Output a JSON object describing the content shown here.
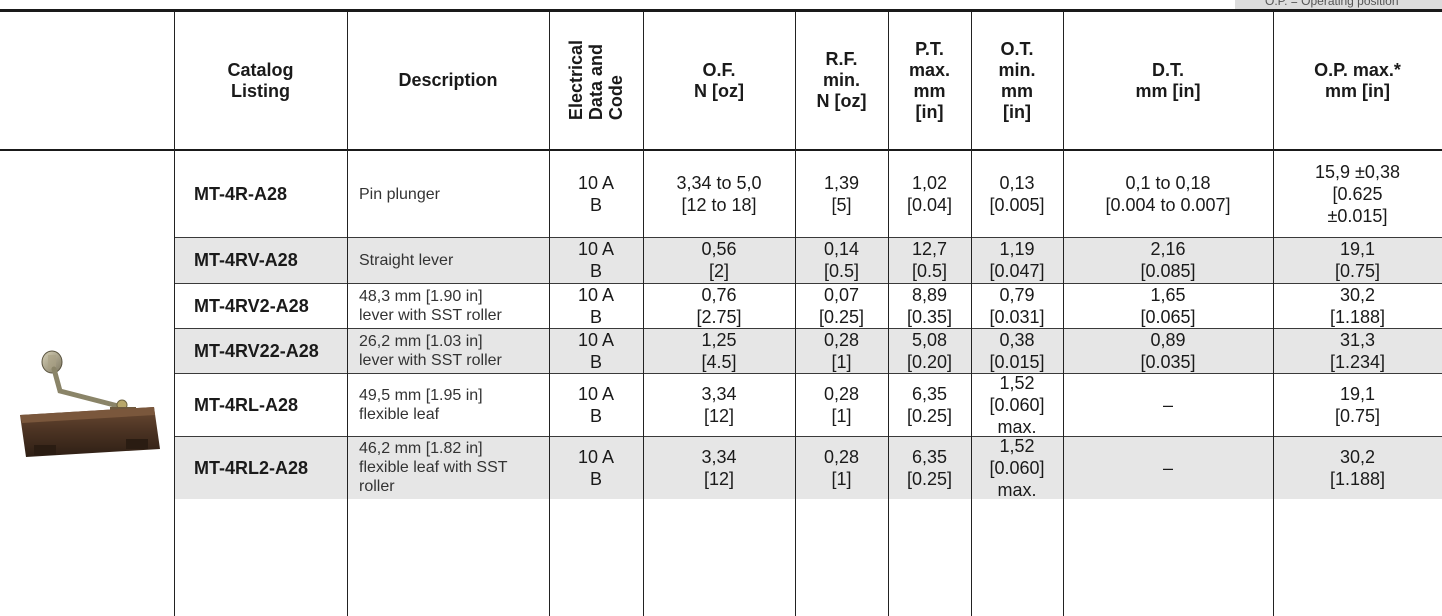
{
  "note": "O.P. = Operating position",
  "columns": [
    "Catalog\nListing",
    "Description",
    "Electrical\nData and\nCode",
    "O.F.\nN [oz]",
    "R.F.\nmin.\nN [oz]",
    "P.T.\nmax.\nmm\n[in]",
    "O.T.\nmin.\nmm\n[in]",
    "D.T.\nmm [in]",
    "O.P. max.*\nmm [in]"
  ],
  "rows": [
    {
      "catalog": "MT-4R-A28",
      "description": "Pin plunger",
      "electrical": "10 A\nB",
      "of": "3,34 to 5,0\n[12 to 18]",
      "rf": "1,39\n[5]",
      "pt": "1,02\n[0.04]",
      "ot": "0,13\n[0.005]",
      "dt": "0,1 to 0,18\n[0.004 to 0.007]",
      "op": "15,9 ±0,38\n[0.625\n±0.015]"
    },
    {
      "catalog": "MT-4RV-A28",
      "description": "Straight lever",
      "electrical": "10 A\nB",
      "of": "0,56\n[2]",
      "rf": "0,14\n[0.5]",
      "pt": "12,7\n[0.5]",
      "ot": "1,19\n[0.047]",
      "dt": "2,16\n[0.085]",
      "op": "19,1\n[0.75]"
    },
    {
      "catalog": "MT-4RV2-A28",
      "description": "48,3 mm [1.90 in]\nlever with SST roller",
      "electrical": "10 A\nB",
      "of": "0,76\n[2.75]",
      "rf": "0,07\n[0.25]",
      "pt": "8,89\n[0.35]",
      "ot": "0,79\n[0.031]",
      "dt": "1,65\n[0.065]",
      "op": "30,2\n[1.188]"
    },
    {
      "catalog": "MT-4RV22-A28",
      "description": "26,2 mm [1.03 in]\nlever with SST roller",
      "electrical": "10 A\nB",
      "of": "1,25\n[4.5]",
      "rf": "0,28\n[1]",
      "pt": "5,08\n[0.20]",
      "ot": "0,38\n[0.015]",
      "dt": "0,89\n[0.035]",
      "op": "31,3\n[1.234]"
    },
    {
      "catalog": "MT-4RL-A28",
      "description": "49,5 mm [1.95 in]\nflexible leaf",
      "electrical": "10 A\nB",
      "of": "3,34\n[12]",
      "rf": "0,28\n[1]",
      "pt": "6,35\n[0.25]",
      "ot": "1,52\n[0.060]\nmax.",
      "dt": "–",
      "op": "19,1\n[0.75]"
    },
    {
      "catalog": "MT-4RL2-A28",
      "description": "46,2 mm [1.82 in]\nflexible leaf with SST\nroller",
      "electrical": "10 A\nB",
      "of": "3,34\n[12]",
      "rf": "0,28\n[1]",
      "pt": "6,35\n[0.25]",
      "ot": "1,52\n[0.060]\nmax.",
      "dt": "–",
      "op": "30,2\n[1.188]"
    }
  ],
  "colors": {
    "shade": "#e6e6e6",
    "rule": "#1a1a1a",
    "note_bg": "#dcdcdc"
  },
  "product_icon": "limit-switch-photo"
}
